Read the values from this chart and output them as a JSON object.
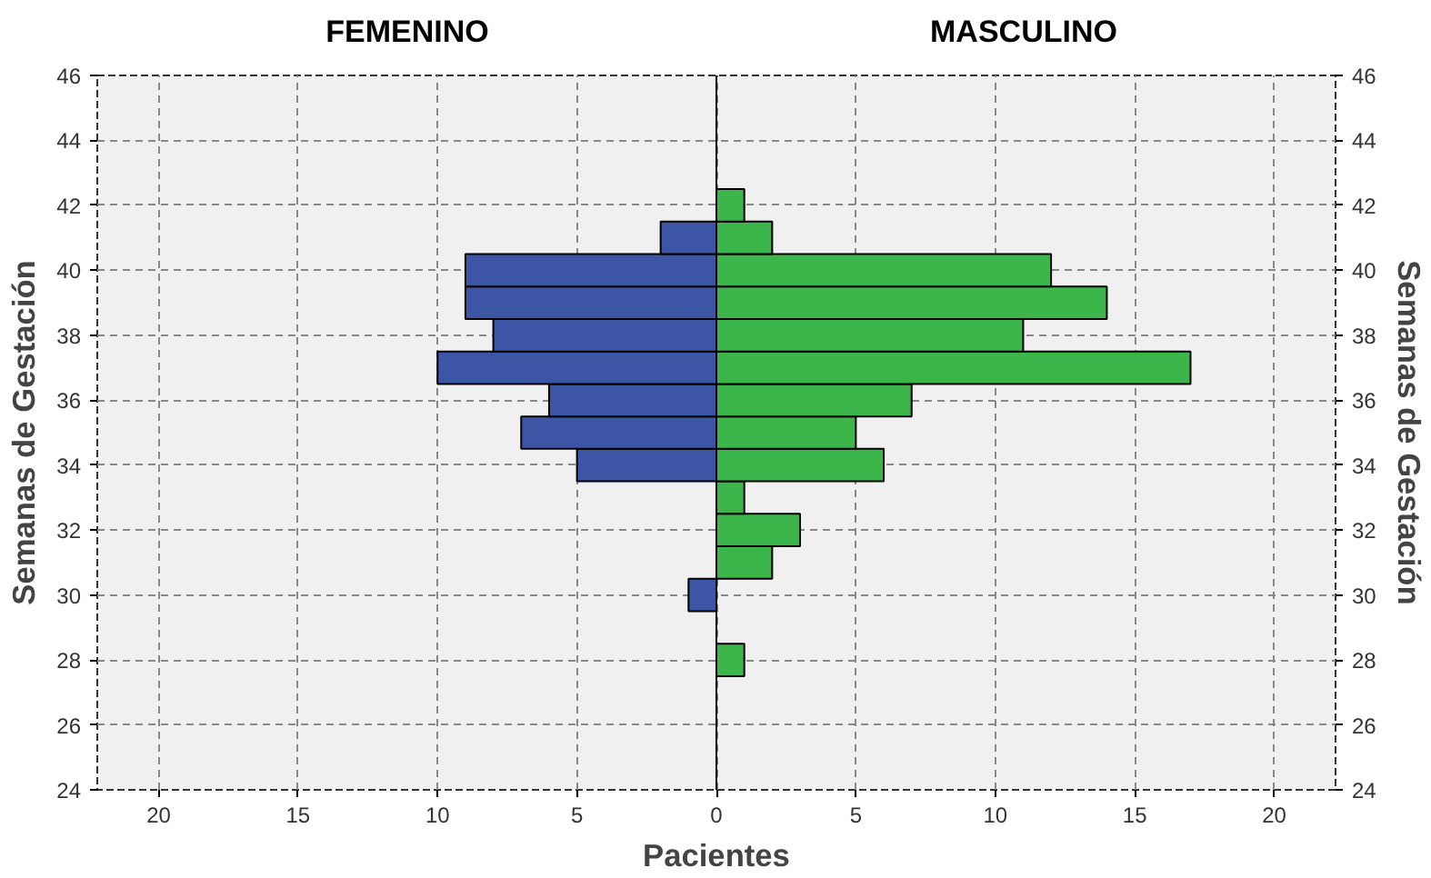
{
  "chart_data": {
    "type": "bar",
    "orientation": "horizontal",
    "xlabel": "Pacientes",
    "ylabel": "Semanas de Gestación",
    "y2label": "Semanas de Gestación",
    "x": [
      28,
      29,
      30,
      31,
      32,
      33,
      34,
      35,
      36,
      37,
      38,
      39,
      40,
      41,
      42
    ],
    "series": [
      {
        "color": "#3c55a5",
        "values": [
          null,
          null,
          -1,
          null,
          null,
          null,
          -5,
          -7,
          -6,
          -10,
          -8,
          -9,
          -9,
          -2,
          null
        ]
      },
      {
        "color": "#3cb64a",
        "values": [
          1,
          null,
          null,
          2,
          3,
          1,
          6,
          5,
          7,
          17,
          11,
          14,
          12,
          2,
          1
        ]
      }
    ],
    "xlim": [
      -22.2,
      22.2
    ],
    "xticks": [
      {
        "value": -20,
        "label": "20"
      },
      {
        "value": -15,
        "label": "15"
      },
      {
        "value": -10,
        "label": "10"
      },
      {
        "value": -5,
        "label": "5"
      },
      0,
      5,
      10,
      15,
      20
    ],
    "ylim": [
      24,
      46
    ],
    "yticks": [
      24,
      26,
      28,
      30,
      32,
      34,
      36,
      38,
      40,
      42,
      44,
      46
    ],
    "y2lim": [
      24,
      46
    ],
    "y2ticks": [
      24,
      26,
      28,
      30,
      32,
      34,
      36,
      38,
      40,
      42,
      44,
      46
    ],
    "annotations": [
      "FEMENINO",
      "MASCULINO"
    ],
    "stacked": true,
    "grid": true
  }
}
